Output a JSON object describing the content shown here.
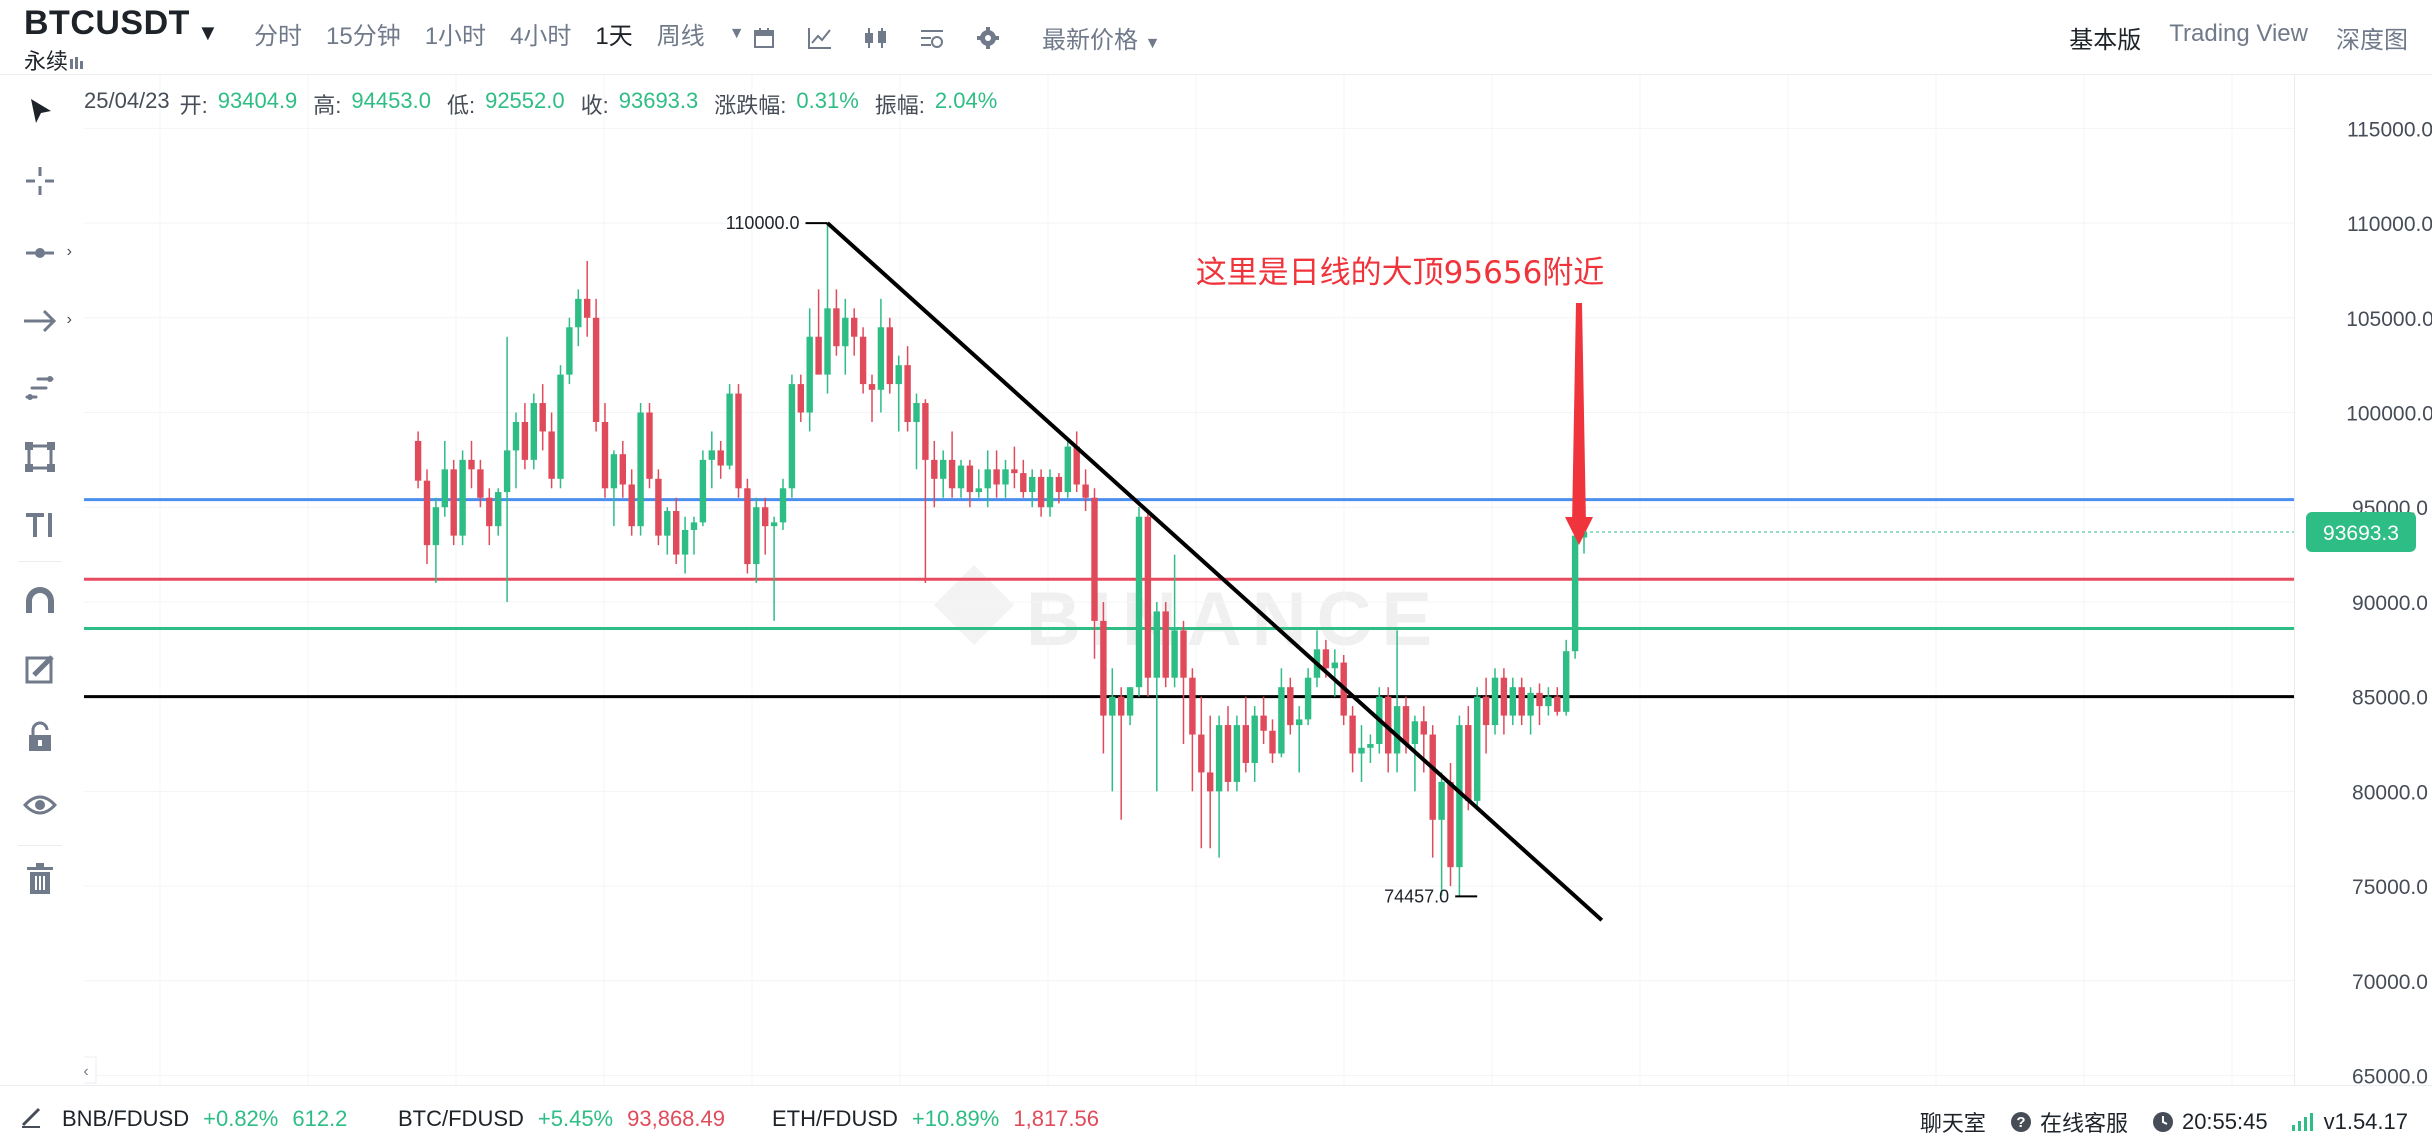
{
  "header": {
    "symbol": "BTCUSDT",
    "contract_type": "永续",
    "intervals": [
      {
        "label": "分时",
        "active": false
      },
      {
        "label": "15分钟",
        "active": false
      },
      {
        "label": "1小时",
        "active": false
      },
      {
        "label": "4小时",
        "active": false
      },
      {
        "label": "1天",
        "active": true
      },
      {
        "label": "周线",
        "active": false
      }
    ],
    "toolbar_icons": [
      "calendar-icon",
      "indicator-icon",
      "candle-style-icon",
      "settings-panel-icon",
      "gear-icon"
    ],
    "price_type": "最新价格",
    "views": [
      {
        "label": "基本版",
        "active": true
      },
      {
        "label": "Trading View",
        "active": false
      },
      {
        "label": "深度图",
        "active": false
      }
    ]
  },
  "ohlc": {
    "date": "25/04/23",
    "open_label": "开:",
    "open": "93404.9",
    "high_label": "高:",
    "high": "94453.0",
    "low_label": "低:",
    "low": "92552.0",
    "close_label": "收:",
    "close": "93693.3",
    "change_label": "涨跌幅:",
    "change": "0.31%",
    "amplitude_label": "振幅:",
    "amplitude": "2.04%"
  },
  "chart_data": {
    "type": "candlestick",
    "y_ticks": [
      "115000.0",
      "110000.0",
      "105000.0",
      "100000.0",
      "95000.0",
      "90000.0",
      "85000.0",
      "80000.0",
      "75000.0",
      "70000.0",
      "65000.0"
    ],
    "ylim": [
      64500,
      117500
    ],
    "current_price": "93693.3",
    "high_marker": "110000.0",
    "low_marker": "74457.0",
    "annotation": "这里是日线的大顶95656附近",
    "watermark": "BINANCE",
    "horizontal_lines": [
      {
        "price": 95400,
        "color": "#4a8ef0"
      },
      {
        "price": 91200,
        "color": "#e84a5f"
      },
      {
        "price": 88600,
        "color": "#2ebd85"
      },
      {
        "price": 85000,
        "color": "#000000"
      }
    ],
    "trendline": {
      "from": {
        "index": 46,
        "price": 110000
      },
      "to": {
        "index": 133,
        "price": 73200
      }
    },
    "candles": [
      [
        98500,
        99000,
        96000,
        96400
      ],
      [
        96400,
        97000,
        92000,
        93000
      ],
      [
        93000,
        95500,
        91000,
        95000
      ],
      [
        95000,
        98500,
        94500,
        97000
      ],
      [
        97000,
        97500,
        93000,
        93500
      ],
      [
        93500,
        98000,
        93000,
        97500
      ],
      [
        97500,
        98500,
        96000,
        97000
      ],
      [
        97000,
        97500,
        95000,
        95500
      ],
      [
        95500,
        96000,
        93000,
        94000
      ],
      [
        94000,
        96000,
        93500,
        95800
      ],
      [
        95800,
        104000,
        90000,
        98000
      ],
      [
        98000,
        100000,
        96000,
        99500
      ],
      [
        99500,
        100500,
        97000,
        97500
      ],
      [
        97500,
        101000,
        97000,
        100500
      ],
      [
        100500,
        101500,
        98000,
        99000
      ],
      [
        99000,
        100000,
        96000,
        96500
      ],
      [
        96500,
        102500,
        96000,
        102000
      ],
      [
        102000,
        105000,
        101500,
        104500
      ],
      [
        104500,
        106500,
        103500,
        106000
      ],
      [
        106000,
        108000,
        104000,
        105000
      ],
      [
        105000,
        106000,
        99000,
        99500
      ],
      [
        99500,
        100500,
        95500,
        96000
      ],
      [
        96000,
        98000,
        94000,
        97800
      ],
      [
        97800,
        98500,
        95500,
        96200
      ],
      [
        96200,
        97000,
        93500,
        94000
      ],
      [
        94000,
        100500,
        93500,
        100000
      ],
      [
        100000,
        100500,
        96000,
        96500
      ],
      [
        96500,
        97000,
        93000,
        93500
      ],
      [
        93500,
        95000,
        92500,
        94800
      ],
      [
        94800,
        95500,
        92000,
        92500
      ],
      [
        92500,
        94500,
        91500,
        93800
      ],
      [
        93800,
        94500,
        92500,
        94200
      ],
      [
        94200,
        98000,
        94000,
        97500
      ],
      [
        97500,
        99000,
        96000,
        98000
      ],
      [
        98000,
        98500,
        96500,
        97200
      ],
      [
        97200,
        101500,
        97000,
        101000
      ],
      [
        101000,
        101500,
        95500,
        96000
      ],
      [
        96000,
        96500,
        91500,
        92000
      ],
      [
        92000,
        95500,
        91000,
        95000
      ],
      [
        95000,
        95500,
        92500,
        94000
      ],
      [
        94000,
        94500,
        89000,
        94200
      ],
      [
        94200,
        96500,
        93800,
        96000
      ],
      [
        96000,
        102000,
        95500,
        101500
      ],
      [
        101500,
        102000,
        99500,
        100000
      ],
      [
        100000,
        105500,
        99000,
        104000
      ],
      [
        104000,
        106500,
        102500,
        102000
      ],
      [
        102000,
        110000,
        101000,
        105500
      ],
      [
        105500,
        106500,
        103000,
        103500
      ],
      [
        103500,
        106000,
        102000,
        105000
      ],
      [
        105000,
        105500,
        103000,
        104000
      ],
      [
        104000,
        104500,
        101000,
        101500
      ],
      [
        101500,
        102000,
        99500,
        101200
      ],
      [
        101200,
        106000,
        100000,
        104500
      ],
      [
        104500,
        105000,
        101000,
        101500
      ],
      [
        101500,
        103000,
        99000,
        102500
      ],
      [
        102500,
        103500,
        99000,
        99500
      ],
      [
        99500,
        101000,
        97000,
        100500
      ],
      [
        100500,
        100700,
        91000,
        97500
      ],
      [
        97500,
        98500,
        95000,
        96500
      ],
      [
        96500,
        98000,
        95500,
        97500
      ],
      [
        97500,
        99000,
        95500,
        96000
      ],
      [
        96000,
        97500,
        95500,
        97200
      ],
      [
        97200,
        97500,
        95000,
        95800
      ],
      [
        95800,
        97000,
        95500,
        96000
      ],
      [
        96000,
        98000,
        95000,
        97000
      ],
      [
        97000,
        98000,
        95500,
        96200
      ],
      [
        96200,
        97500,
        95500,
        97000
      ],
      [
        97000,
        98200,
        96000,
        96800
      ],
      [
        96800,
        97500,
        95500,
        95800
      ],
      [
        95800,
        97000,
        95000,
        96600
      ],
      [
        96600,
        97000,
        94500,
        95000
      ],
      [
        95000,
        97000,
        94500,
        96600
      ],
      [
        96600,
        96800,
        95200,
        95800
      ],
      [
        95800,
        98500,
        95500,
        98200
      ],
      [
        98200,
        99000,
        95800,
        96200
      ],
      [
        96200,
        97000,
        94800,
        95500
      ],
      [
        95500,
        96000,
        87000,
        89000
      ],
      [
        89000,
        90000,
        82000,
        84000
      ],
      [
        84000,
        86500,
        80000,
        85000
      ],
      [
        85000,
        85500,
        78500,
        84000
      ],
      [
        84000,
        85500,
        83500,
        85500
      ],
      [
        85500,
        95000,
        85000,
        94500
      ],
      [
        94500,
        94700,
        85000,
        86000
      ],
      [
        86000,
        90000,
        80000,
        89500
      ],
      [
        89500,
        90000,
        85500,
        86000
      ],
      [
        86000,
        92500,
        85500,
        88500
      ],
      [
        88500,
        89000,
        82500,
        86000
      ],
      [
        86000,
        86500,
        80000,
        83000
      ],
      [
        83000,
        85000,
        77000,
        81000
      ],
      [
        81000,
        84000,
        77000,
        80000
      ],
      [
        80000,
        84000,
        76500,
        83500
      ],
      [
        83500,
        84500,
        80000,
        80500
      ],
      [
        80500,
        84000,
        80000,
        83500
      ],
      [
        83500,
        85000,
        81000,
        81500
      ],
      [
        81500,
        84500,
        80500,
        84000
      ],
      [
        84000,
        85000,
        82500,
        83200
      ],
      [
        83200,
        83800,
        81500,
        82000
      ],
      [
        82000,
        86500,
        81800,
        85500
      ],
      [
        85500,
        86000,
        83000,
        83500
      ],
      [
        83500,
        84500,
        81000,
        83800
      ],
      [
        83800,
        86500,
        83500,
        86000
      ],
      [
        86000,
        88500,
        85500,
        87500
      ],
      [
        87500,
        88000,
        86000,
        86500
      ],
      [
        86500,
        87500,
        85000,
        86800
      ],
      [
        86800,
        87200,
        83500,
        84000
      ],
      [
        84000,
        84500,
        81000,
        82000
      ],
      [
        82000,
        83500,
        80500,
        82300
      ],
      [
        82300,
        83000,
        81500,
        82500
      ],
      [
        82500,
        85500,
        82000,
        85000
      ],
      [
        85000,
        85500,
        81000,
        82000
      ],
      [
        82000,
        88500,
        81000,
        84500
      ],
      [
        84500,
        85000,
        82000,
        82500
      ],
      [
        82500,
        84000,
        80000,
        83700
      ],
      [
        83700,
        84500,
        81000,
        83000
      ],
      [
        83000,
        83500,
        76500,
        78500
      ],
      [
        78500,
        81000,
        74500,
        80500
      ],
      [
        80500,
        81500,
        75000,
        76000
      ],
      [
        76000,
        84000,
        74457,
        83500
      ],
      [
        83500,
        84500,
        79000,
        79500
      ],
      [
        79500,
        85500,
        79000,
        85000
      ],
      [
        85000,
        86000,
        82000,
        83500
      ],
      [
        83500,
        86500,
        83000,
        86000
      ],
      [
        86000,
        86500,
        83000,
        84000
      ],
      [
        84000,
        86000,
        83500,
        85500
      ],
      [
        85500,
        86000,
        83500,
        84000
      ],
      [
        84000,
        85500,
        83000,
        85200
      ],
      [
        85200,
        85700,
        83500,
        84500
      ],
      [
        84500,
        85500,
        84000,
        85000
      ],
      [
        85000,
        85500,
        84000,
        84200
      ],
      [
        84200,
        88000,
        84000,
        87400
      ],
      [
        87400,
        94000,
        87000,
        93500
      ],
      [
        93400,
        94450,
        92550,
        93700
      ]
    ]
  },
  "ticker": [
    {
      "pair": "BNB/FDUSD",
      "change": "+0.82%",
      "price": "612.2"
    },
    {
      "pair": "BTC/FDUSD",
      "change": "+5.45%",
      "price": "93,868.49"
    },
    {
      "pair": "ETH/FDUSD",
      "change": "+10.89%",
      "price": "1,817.56"
    }
  ],
  "footer": {
    "chat": "聊天室",
    "support": "在线客服",
    "time": "20:55:45",
    "version": "v1.54.17"
  },
  "colors": {
    "up": "#2ebd85",
    "down": "#e04b5b",
    "accent": "#f0b90b"
  }
}
